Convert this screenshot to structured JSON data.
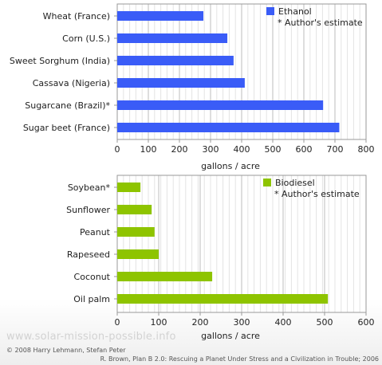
{
  "chart_data": [
    {
      "type": "bar",
      "orientation": "horizontal",
      "categories": [
        "Wheat (France)",
        "Corn (U.S.)",
        "Sweet Sorghum (India)",
        "Cassava (Nigeria)",
        "Sugarcane (Brazil)*",
        "Sugar beet (France)"
      ],
      "series": [
        {
          "name": "Ethanol",
          "values": [
            277,
            354,
            374,
            410,
            662,
            714
          ],
          "color": "#3a5cf7"
        }
      ],
      "xlabel": "gallons / acre",
      "xlim": [
        0,
        800
      ],
      "xticks": [
        0,
        100,
        200,
        300,
        400,
        500,
        600,
        700,
        800
      ],
      "note": "* Author's estimate",
      "grid": true,
      "legend": "top-right"
    },
    {
      "type": "bar",
      "orientation": "horizontal",
      "categories": [
        "Soybean*",
        "Sunflower",
        "Peanut",
        "Rapeseed",
        "Coconut",
        "Oil palm"
      ],
      "series": [
        {
          "name": "Biodiesel",
          "values": [
            56,
            83,
            90,
            100,
            229,
            508
          ],
          "color": "#8ec400"
        }
      ],
      "xlabel": "gallons / acre",
      "xlim": [
        0,
        600
      ],
      "xticks": [
        0,
        100,
        200,
        300,
        400,
        500,
        600
      ],
      "note": "* Author's estimate",
      "grid": true,
      "legend": "top-right"
    }
  ],
  "footer": {
    "watermark": "www.solar-mission-possible.info",
    "copyright": "© 2008 Harry Lehmann, Stefan Peter",
    "source": "R. Brown, Plan B 2.0: Rescuing a Planet Under Stress and a Civilization in Trouble; 2006"
  }
}
